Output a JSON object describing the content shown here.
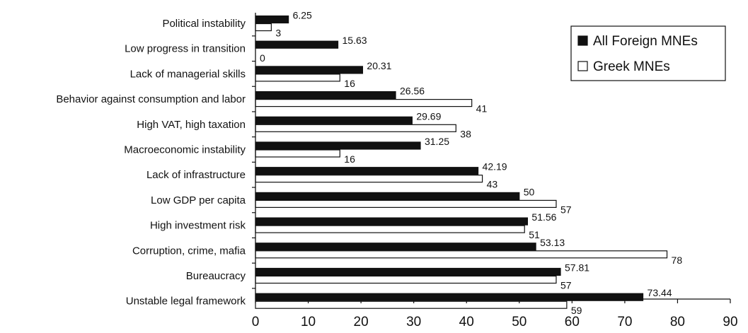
{
  "chart_data": {
    "type": "bar",
    "orientation": "horizontal",
    "categories": [
      "Political instability",
      "Low progress in transition",
      "Lack of managerial skills",
      "Behavior against consumption and labor",
      "High VAT, high taxation",
      "Macroeconomic instability",
      "Lack of infrastructure",
      "Low GDP per capita",
      "High investment risk",
      "Corruption, crime, mafia",
      "Bureaucracy",
      "Unstable legal framework"
    ],
    "series": [
      {
        "name": "All Foreign MNEs",
        "color": "#111111",
        "values": [
          6.25,
          15.63,
          20.31,
          26.56,
          29.69,
          31.25,
          42.19,
          50,
          51.56,
          53.13,
          57.81,
          73.44
        ],
        "labels": [
          "6.25",
          "15.63",
          "20.31",
          "26.56",
          "29.69",
          "31.25",
          "42.19",
          "50",
          "51.56",
          "53.13",
          "57.81",
          "73.44"
        ]
      },
      {
        "name": "Greek MNEs",
        "color": "#ffffff",
        "values": [
          3,
          0,
          16,
          41,
          38,
          16,
          43,
          57,
          51,
          78,
          57,
          59
        ],
        "labels": [
          "3",
          "0",
          "16",
          "41",
          "38",
          "16",
          "43",
          "57",
          "51",
          "78",
          "57",
          "59"
        ]
      }
    ],
    "xlim": [
      0,
      90
    ],
    "xticks": [
      "0",
      "10",
      "20",
      "30",
      "40",
      "50",
      "60",
      "70",
      "80",
      "90"
    ],
    "grid": false,
    "legend_position": "top-right"
  }
}
